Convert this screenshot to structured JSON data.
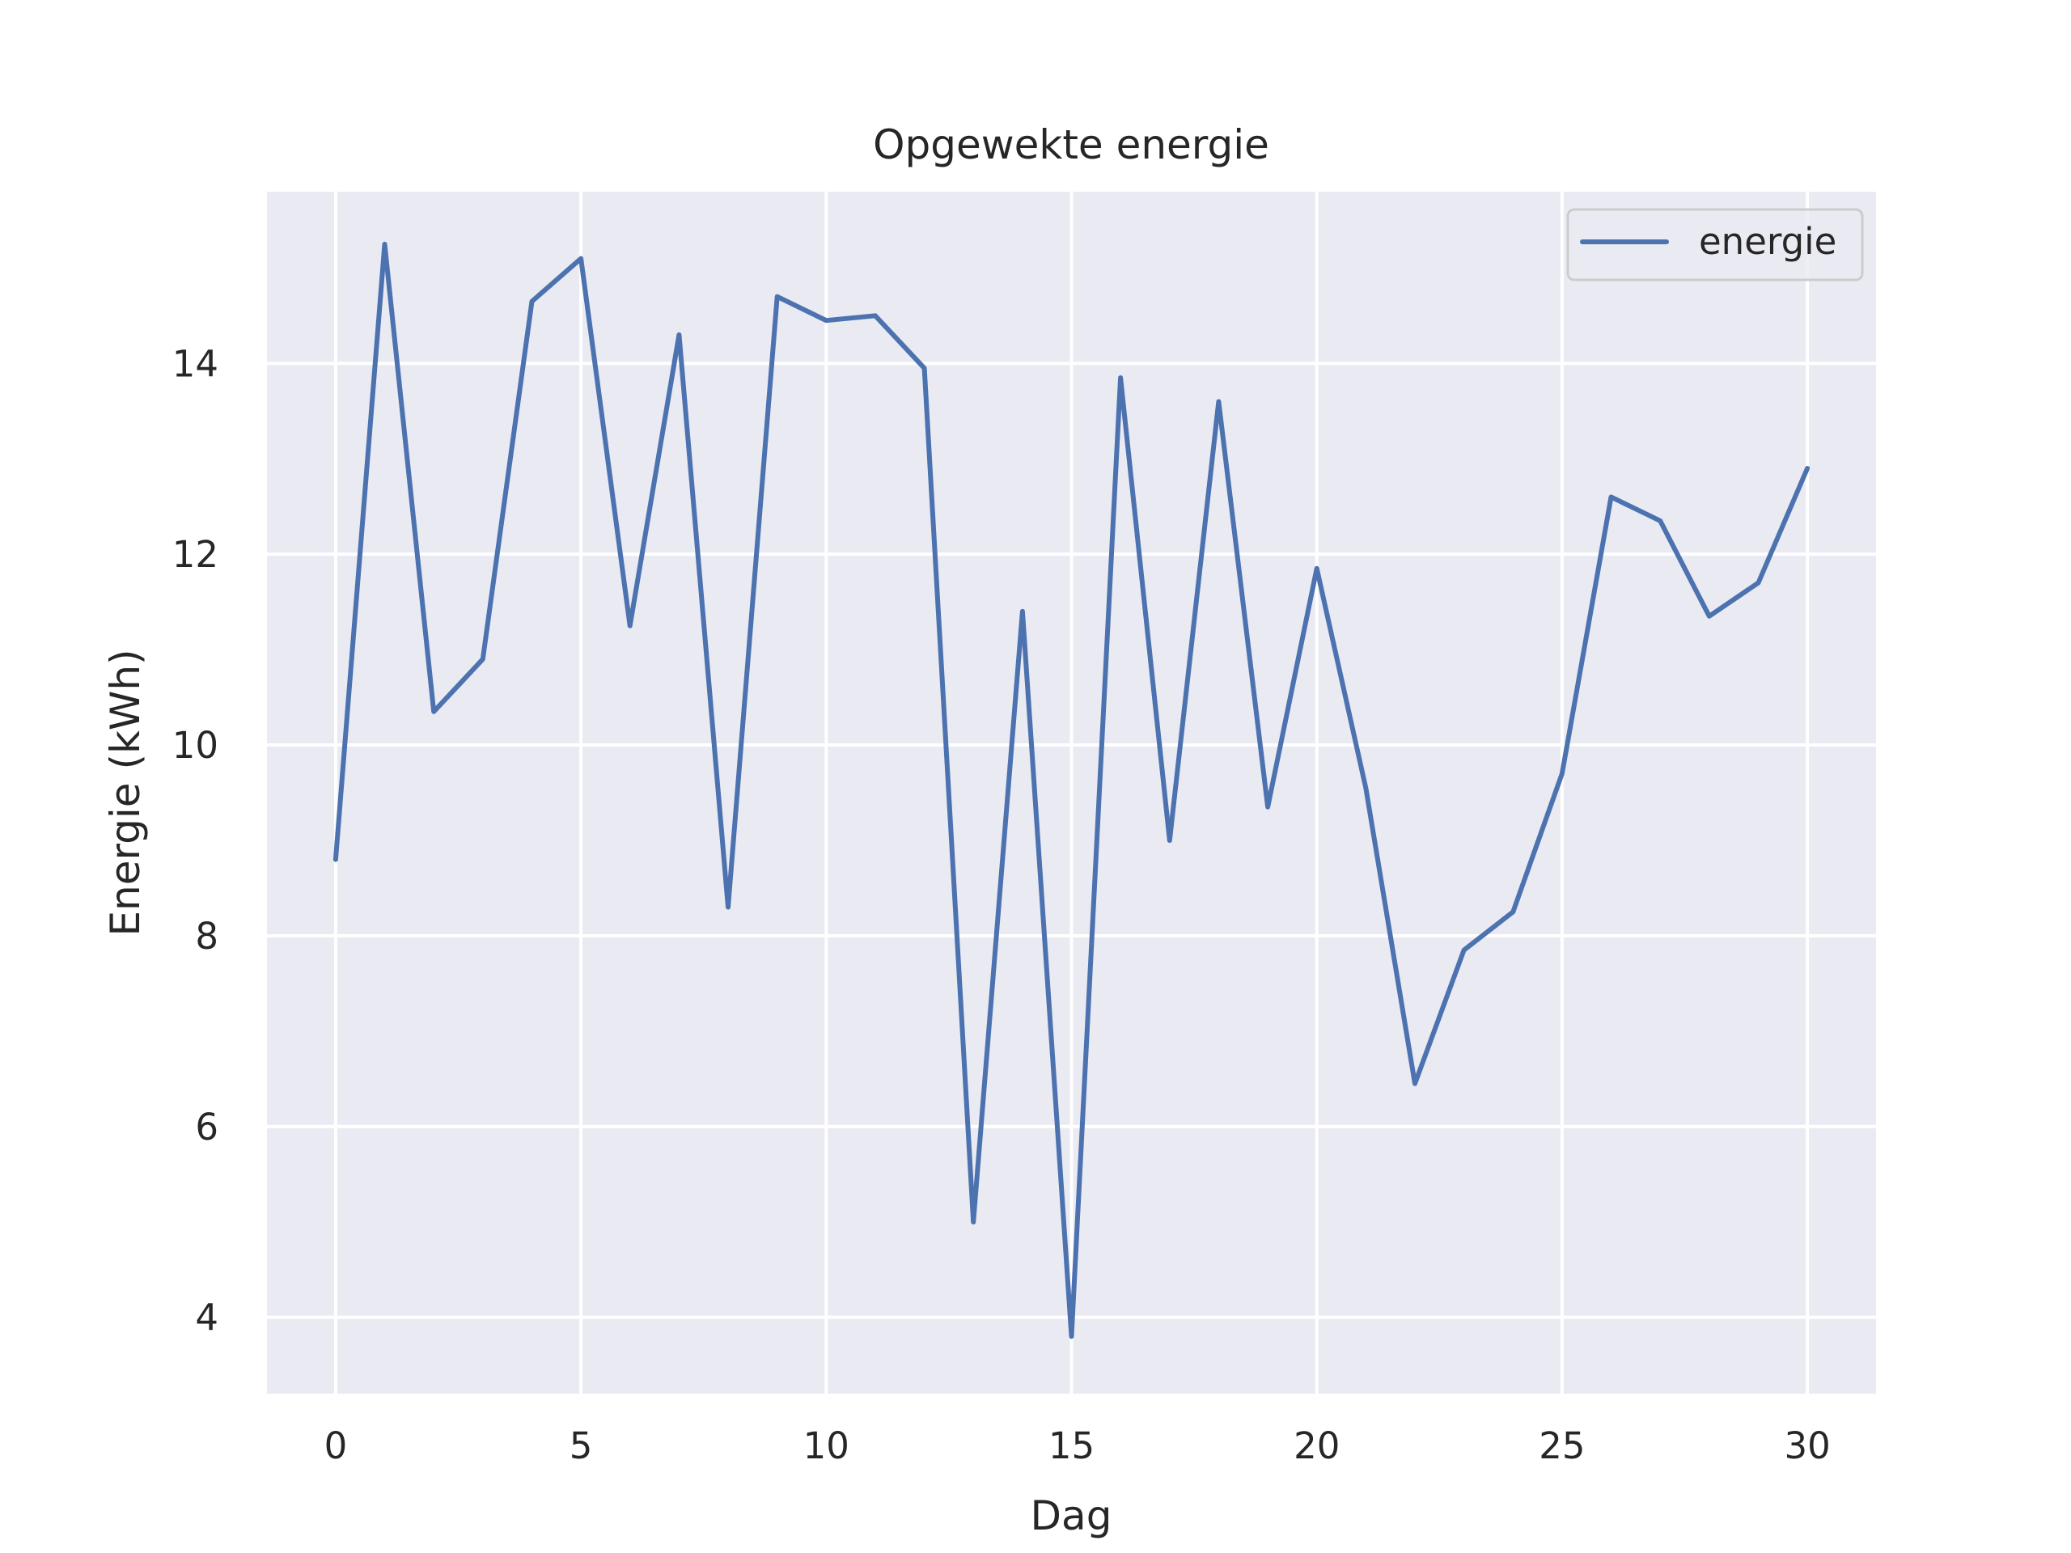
{
  "chart_data": {
    "type": "line",
    "title": "Opgewekte energie",
    "xlabel": "Dag",
    "ylabel": "Energie (kWh)",
    "xlim": [
      -1.4,
      31.4
    ],
    "ylim": [
      3.2,
      15.8
    ],
    "xticks": [
      0,
      5,
      10,
      15,
      20,
      25,
      30
    ],
    "yticks": [
      4,
      6,
      8,
      10,
      12,
      14
    ],
    "grid": true,
    "legend": {
      "position": "top-right"
    },
    "series": [
      {
        "name": "energie",
        "color": "#4c72b0",
        "x": [
          0,
          1,
          2,
          3,
          4,
          5,
          6,
          7,
          8,
          9,
          10,
          11,
          12,
          13,
          14,
          15,
          16,
          17,
          18,
          19,
          20,
          21,
          22,
          23,
          24,
          25,
          26,
          27,
          28,
          29,
          30
        ],
        "values": [
          8.8,
          15.25,
          10.35,
          10.9,
          14.65,
          15.1,
          11.25,
          14.3,
          8.3,
          14.7,
          14.45,
          14.5,
          13.95,
          5.0,
          11.4,
          3.8,
          13.85,
          9.0,
          13.6,
          9.35,
          11.85,
          9.55,
          6.45,
          7.85,
          8.25,
          9.7,
          12.6,
          12.35,
          11.35,
          11.7,
          12.9
        ]
      }
    ]
  }
}
